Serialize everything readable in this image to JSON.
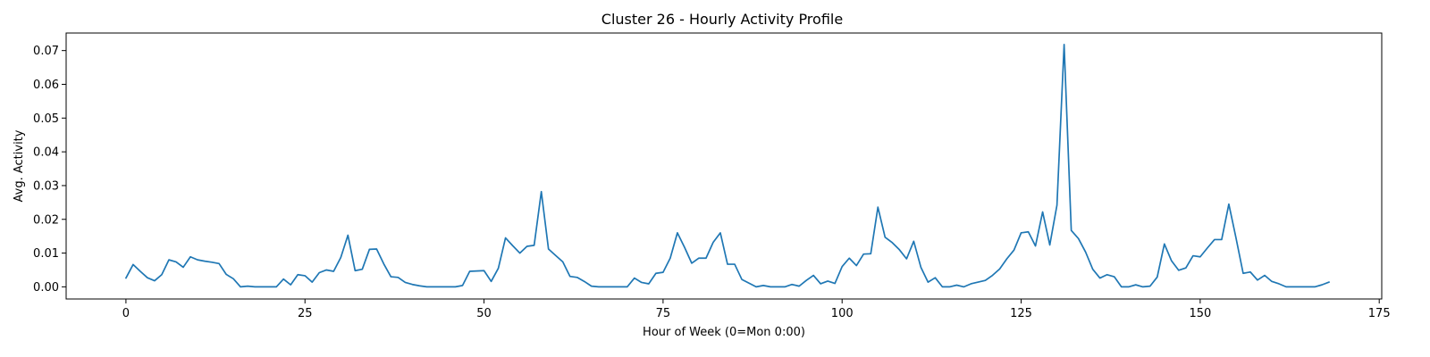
{
  "chart_data": {
    "type": "line",
    "title": "Cluster 26 - Hourly Activity Profile",
    "xlabel": "Hour of Week (0=Mon 0:00)",
    "ylabel": "Avg. Activity",
    "xlim": [
      -8.35,
      175.35
    ],
    "ylim": [
      -0.0036,
      0.0752
    ],
    "xticks": [
      0,
      25,
      50,
      75,
      100,
      125,
      150,
      175
    ],
    "yticks": [
      0.0,
      0.01,
      0.02,
      0.03,
      0.04,
      0.05,
      0.06,
      0.07
    ],
    "xtick_labels": [
      "0",
      "25",
      "50",
      "75",
      "100",
      "125",
      "150",
      "175"
    ],
    "ytick_labels": [
      "0.00",
      "0.01",
      "0.02",
      "0.03",
      "0.04",
      "0.05",
      "0.06",
      "0.07"
    ],
    "grid": false,
    "line_color": "#1f77b4",
    "series": [
      {
        "x_start": 0,
        "values": [
          0.0026,
          0.0066,
          0.0046,
          0.0027,
          0.0018,
          0.0036,
          0.008,
          0.0074,
          0.0058,
          0.0089,
          0.008,
          0.0076,
          0.0073,
          0.0069,
          0.0037,
          0.0024,
          0.0,
          0.0002,
          0.0,
          0.0,
          0.0,
          0.0,
          0.0023,
          0.0006,
          0.0036,
          0.0033,
          0.0014,
          0.0042,
          0.005,
          0.0046,
          0.0087,
          0.0153,
          0.0048,
          0.0052,
          0.0111,
          0.0112,
          0.0068,
          0.003,
          0.0028,
          0.0013,
          0.0007,
          0.0003,
          0.0,
          0.0,
          0.0,
          0.0,
          0.0,
          0.0004,
          0.0046,
          0.0047,
          0.0048,
          0.0016,
          0.0055,
          0.0145,
          0.0122,
          0.01,
          0.012,
          0.0123,
          0.0282,
          0.0112,
          0.0093,
          0.0074,
          0.0031,
          0.0028,
          0.0016,
          0.0002,
          0.0,
          0.0,
          0.0,
          0.0,
          0.0,
          0.0026,
          0.0013,
          0.0009,
          0.004,
          0.0043,
          0.0085,
          0.016,
          0.0117,
          0.007,
          0.0085,
          0.0085,
          0.0132,
          0.016,
          0.0067,
          0.0067,
          0.0022,
          0.0011,
          0.0,
          0.0004,
          0.0,
          0.0,
          0.0,
          0.0007,
          0.0002,
          0.0019,
          0.0034,
          0.0009,
          0.0017,
          0.001,
          0.006,
          0.0085,
          0.0063,
          0.0097,
          0.0098,
          0.0236,
          0.0147,
          0.0131,
          0.011,
          0.0083,
          0.0135,
          0.0058,
          0.0014,
          0.0027,
          0.0,
          0.0,
          0.0005,
          0.0,
          0.0009,
          0.0014,
          0.0019,
          0.0034,
          0.0053,
          0.0083,
          0.0109,
          0.016,
          0.0163,
          0.0121,
          0.0222,
          0.0124,
          0.0242,
          0.0718,
          0.0167,
          0.0143,
          0.0103,
          0.0052,
          0.0026,
          0.0036,
          0.003,
          0.0,
          0.0,
          0.0006,
          0.0,
          0.0002,
          0.0029,
          0.0127,
          0.0077,
          0.0049,
          0.0056,
          0.0092,
          0.0089,
          0.0115,
          0.014,
          0.014,
          0.0245,
          0.0145,
          0.004,
          0.0044,
          0.002,
          0.0034,
          0.0016,
          0.0009,
          0.0,
          0.0,
          0.0,
          0.0,
          0.0,
          0.0006,
          0.0014
        ]
      }
    ]
  }
}
